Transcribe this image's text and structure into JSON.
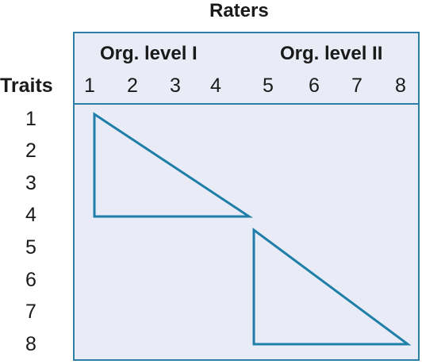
{
  "title": "Raters",
  "group_labels": [
    "Org. level I",
    "Org. level II"
  ],
  "row_header": "Traits",
  "rater_numbers": [
    "1",
    "2",
    "3",
    "4",
    "5",
    "6",
    "7",
    "8"
  ],
  "trait_numbers": [
    "1",
    "2",
    "3",
    "4",
    "5",
    "6",
    "7",
    "8"
  ],
  "colors": {
    "frame": "#2b7fa6",
    "panel_fill": "#e9ecf6",
    "triangle_stroke": "#1f7fa8",
    "text": "#1a1a1a"
  }
}
